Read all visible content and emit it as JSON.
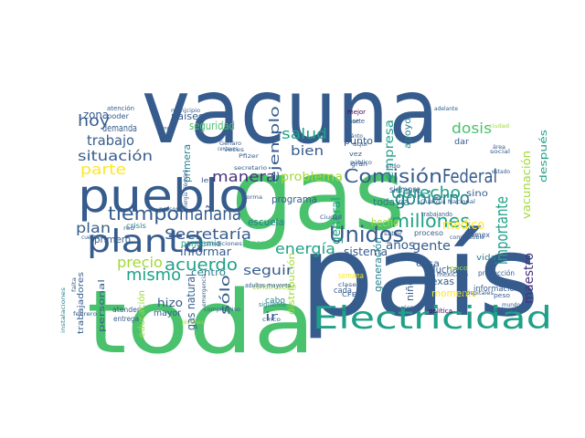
{
  "colors": {
    "background": "#ffffff",
    "dark_purple": "#46327e",
    "navy": "#365c8d",
    "teal_blue": "#277f8e",
    "teal": "#1fa187",
    "green": "#4ac16d",
    "light_green": "#a0da39",
    "yellow": "#fde725",
    "deep_purple": "#440154"
  },
  "words": [
    {
      "text": "vacuna",
      "color": "navy"
    },
    {
      "text": "gas",
      "color": "green"
    },
    {
      "text": "país",
      "color": "navy"
    },
    {
      "text": "toda",
      "color": "green"
    },
    {
      "text": "pueblo",
      "color": "navy"
    },
    {
      "text": "planta",
      "color": "navy"
    },
    {
      "text": "Electricidad",
      "color": "teal"
    },
    {
      "text": "Comisión",
      "color": "navy"
    },
    {
      "text": "Federal",
      "color": "navy"
    },
    {
      "text": "gobierno",
      "color": "teal_blue"
    },
    {
      "text": "tiempo",
      "color": "navy"
    },
    {
      "text": "mañana",
      "color": "navy"
    },
    {
      "text": "Unidos",
      "color": "navy"
    },
    {
      "text": "millones",
      "color": "teal"
    },
    {
      "text": "derecho",
      "color": "teal"
    },
    {
      "text": "importante",
      "color": "teal"
    },
    {
      "text": "Secretaría",
      "color": "navy"
    },
    {
      "text": "acuerdo",
      "color": "teal"
    },
    {
      "text": "mismo",
      "color": "teal"
    },
    {
      "text": "precio",
      "color": "light_green"
    },
    {
      "text": "parte",
      "color": "yellow"
    },
    {
      "text": "situación",
      "color": "navy"
    },
    {
      "text": "trabajo",
      "color": "navy"
    },
    {
      "text": "hoy",
      "color": "navy"
    },
    {
      "text": "manera",
      "color": "dark_purple"
    },
    {
      "text": "problema",
      "color": "light_green"
    },
    {
      "text": "bien",
      "color": "navy"
    },
    {
      "text": "salud",
      "color": "teal"
    },
    {
      "text": "ejemplo",
      "color": "navy"
    },
    {
      "text": "energía",
      "color": "teal"
    },
    {
      "text": "empresa",
      "color": "teal"
    },
    {
      "text": "dosis",
      "color": "green"
    },
    {
      "text": "vacunación",
      "color": "light_green"
    },
    {
      "text": "médico",
      "color": "yellow"
    },
    {
      "text": "maestro",
      "color": "dark_purple"
    },
    {
      "text": "plan",
      "color": "navy"
    },
    {
      "text": "seguir",
      "color": "navy"
    },
    {
      "text": "informar",
      "color": "navy"
    },
    {
      "text": "gente",
      "color": "navy"
    },
    {
      "text": "años",
      "color": "navy"
    },
    {
      "text": "general",
      "color": "teal"
    },
    {
      "text": "hecho",
      "color": "light_green"
    },
    {
      "text": "momento",
      "color": "yellow"
    },
    {
      "text": "Muchas",
      "color": "navy"
    },
    {
      "text": "Texas",
      "color": "navy"
    },
    {
      "text": "sólo",
      "color": "navy"
    },
    {
      "text": "programa",
      "color": "navy"
    },
    {
      "text": "escuela",
      "color": "teal_blue"
    },
    {
      "text": "pandemia",
      "color": "teal"
    },
    {
      "text": "sistema",
      "color": "navy"
    },
    {
      "text": "primero",
      "color": "navy"
    },
    {
      "text": "primera",
      "color": "teal_blue"
    },
    {
      "text": "seguridad",
      "color": "green"
    },
    {
      "text": "demanda",
      "color": "navy"
    },
    {
      "text": "paises",
      "color": "navy"
    },
    {
      "text": "zona",
      "color": "navy"
    },
    {
      "text": "hizo",
      "color": "navy"
    },
    {
      "text": "gas natural",
      "color": "navy"
    },
    {
      "text": "centro",
      "color": "teal_blue"
    },
    {
      "text": "mayor",
      "color": "navy"
    },
    {
      "text": "ir",
      "color": "navy"
    },
    {
      "text": "cada",
      "color": "navy"
    },
    {
      "text": "apoyo",
      "color": "teal_blue"
    },
    {
      "text": "punto",
      "color": "navy"
    },
    {
      "text": "generación",
      "color": "teal_blue"
    },
    {
      "text": "niño",
      "color": "navy"
    },
    {
      "text": "semana",
      "color": "yellow"
    },
    {
      "text": "cosa",
      "color": "navy"
    },
    {
      "text": "todavía",
      "color": "teal_blue"
    },
    {
      "text": "siempre",
      "color": "navy"
    },
    {
      "text": "después",
      "color": "teal"
    },
    {
      "text": "información",
      "color": "navy"
    },
    {
      "text": "vida",
      "color": "teal_blue"
    },
    {
      "text": "sino",
      "color": "navy"
    },
    {
      "text": "trabajadores",
      "color": "navy"
    },
    {
      "text": "personal",
      "color": "navy"
    },
    {
      "text": "crisis",
      "color": "teal_blue"
    },
    {
      "text": "atender",
      "color": "navy"
    },
    {
      "text": "entrega",
      "color": "navy"
    },
    {
      "text": "educación",
      "color": "light_green"
    },
    {
      "text": "distribución",
      "color": "light_green"
    },
    {
      "text": "construcción",
      "color": "light_green"
    },
    {
      "text": "proceso",
      "color": "navy"
    },
    {
      "text": "Pemex",
      "color": "navy"
    },
    {
      "text": "producción",
      "color": "navy"
    },
    {
      "text": "nacional",
      "color": "navy"
    },
    {
      "text": "mexicano",
      "color": "navy"
    },
    {
      "text": "dar",
      "color": "navy"
    },
    {
      "text": "cabo",
      "color": "teal_blue"
    },
    {
      "text": "base",
      "color": "navy"
    },
    {
      "text": "norte",
      "color": "navy"
    },
    {
      "text": "mejor",
      "color": "deep_purple"
    },
    {
      "text": "poder",
      "color": "navy"
    },
    {
      "text": "atención",
      "color": "navy"
    },
    {
      "text": "llegar",
      "color": "green"
    },
    {
      "text": "personas",
      "color": "navy"
    },
    {
      "text": "gran",
      "color": "navy"
    },
    {
      "text": "cuenta",
      "color": "navy"
    },
    {
      "text": "ley",
      "color": "navy"
    },
    {
      "text": "aquí",
      "color": "navy"
    },
    {
      "text": "vez",
      "color": "navy"
    },
    {
      "text": "siguiente",
      "color": "teal_blue"
    },
    {
      "text": "adultos mayores",
      "color": "navy"
    },
    {
      "text": "poco",
      "color": "light_green"
    },
    {
      "text": "CFE",
      "color": "navy"
    },
    {
      "text": "febrero",
      "color": "navy"
    },
    {
      "text": "peso",
      "color": "navy"
    },
    {
      "text": "clase",
      "color": "navy"
    },
    {
      "text": "política",
      "color": "deep_purple"
    },
    {
      "text": "menos",
      "color": "navy"
    },
    {
      "text": "Guardia Nacional",
      "color": "navy"
    },
    {
      "text": "trabajando",
      "color": "navy"
    },
    {
      "text": "combustible",
      "color": "navy"
    },
    {
      "text": "jóvenes",
      "color": "light_green"
    },
    {
      "text": "emergencia",
      "color": "navy"
    },
    {
      "text": "centavos",
      "color": "navy"
    },
    {
      "text": "energía eléctrica",
      "color": "navy"
    },
    {
      "text": "falta",
      "color": "navy"
    },
    {
      "text": "estado",
      "color": "navy"
    },
    {
      "text": "ciudad",
      "color": "light_green"
    },
    {
      "text": "área",
      "color": "navy"
    },
    {
      "text": "social",
      "color": "navy"
    },
    {
      "text": "público",
      "color": "navy"
    },
    {
      "text": "adelante",
      "color": "navy"
    },
    {
      "text": "cuánto",
      "color": "navy"
    },
    {
      "text": "compromiso",
      "color": "navy"
    },
    {
      "text": "municipio",
      "color": "navy"
    },
    {
      "text": "forma",
      "color": "navy"
    },
    {
      "text": "secretario",
      "color": "navy"
    },
    {
      "text": "Nacional",
      "color": "navy"
    },
    {
      "text": "viene",
      "color": "navy"
    },
    {
      "text": "hospitales",
      "color": "navy"
    },
    {
      "text": "mundo",
      "color": "navy"
    },
    {
      "text": "red",
      "color": "navy"
    },
    {
      "text": "sido",
      "color": "navy"
    },
    {
      "text": "instalaciones",
      "color": "teal_blue"
    },
    {
      "text": "Ciudad",
      "color": "navy"
    },
    {
      "text": "saber",
      "color": "navy"
    },
    {
      "text": "cinco",
      "color": "navy"
    },
    {
      "text": "condiciones",
      "color": "navy"
    },
    {
      "text": "Pfizer",
      "color": "navy"
    },
    {
      "text": "veces",
      "color": "navy"
    },
    {
      "text": "Genaro",
      "color": "navy"
    }
  ]
}
